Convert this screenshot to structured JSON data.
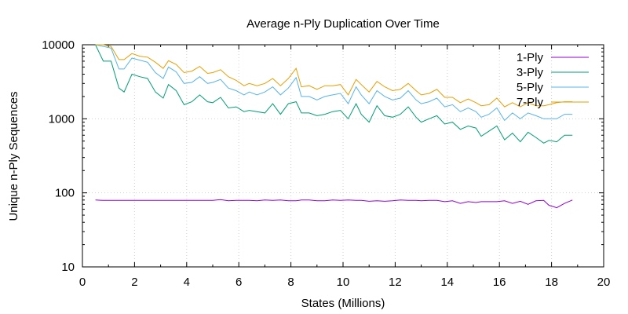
{
  "chart_data": {
    "type": "line",
    "title": "Average n-Ply Duplication Over Time",
    "xlabel": "States (Millions)",
    "ylabel": "Unique n-Ply Sequences",
    "xlim": [
      0,
      20
    ],
    "ylim": [
      10,
      10000
    ],
    "yscale": "log",
    "grid": true,
    "legend_position": "top-right",
    "x_ticks": [
      0,
      2,
      4,
      6,
      8,
      10,
      12,
      14,
      16,
      18,
      20
    ],
    "y_ticks": [
      10,
      100,
      1000,
      10000
    ],
    "x_tick_labels": [
      "0",
      "2",
      "4",
      "6",
      "8",
      "10",
      "12",
      "14",
      "16",
      "18",
      "20"
    ],
    "y_tick_labels": [
      "10",
      "100",
      "1000",
      "10000"
    ],
    "x": [
      0.5,
      0.8,
      1.1,
      1.4,
      1.6,
      1.9,
      2.2,
      2.5,
      2.8,
      3.1,
      3.3,
      3.6,
      3.9,
      4.2,
      4.5,
      4.8,
      5.0,
      5.3,
      5.6,
      5.9,
      6.2,
      6.4,
      6.7,
      7.0,
      7.3,
      7.6,
      7.9,
      8.2,
      8.4,
      8.7,
      9.0,
      9.3,
      9.6,
      9.9,
      10.2,
      10.5,
      10.7,
      11.0,
      11.3,
      11.6,
      11.9,
      12.2,
      12.5,
      12.8,
      13.0,
      13.3,
      13.6,
      13.9,
      14.2,
      14.5,
      14.8,
      15.1,
      15.3,
      15.6,
      15.9,
      16.2,
      16.5,
      16.8,
      17.1,
      17.4,
      17.7,
      17.9,
      18.2,
      18.5,
      18.8
    ],
    "series": [
      {
        "name": "1-Ply",
        "color": "#9400d3",
        "values": [
          80,
          79,
          79,
          79,
          79,
          79,
          79,
          79,
          79,
          79,
          79,
          79,
          79,
          79,
          79,
          79,
          79,
          81,
          78,
          79,
          79,
          79,
          78,
          80,
          79,
          80,
          78,
          78,
          80,
          80,
          78,
          78,
          80,
          79,
          80,
          79,
          79,
          77,
          78,
          77,
          78,
          80,
          79,
          79,
          78,
          79,
          79,
          76,
          78,
          72,
          76,
          74,
          76,
          76,
          76,
          78,
          72,
          77,
          70,
          78,
          79,
          68,
          63,
          72,
          80
        ]
      },
      {
        "name": "3-Ply",
        "color": "#009e73",
        "values": [
          10000,
          6000,
          6000,
          2600,
          2300,
          4000,
          3700,
          3500,
          2300,
          1900,
          2900,
          2400,
          1550,
          1700,
          2100,
          1700,
          1650,
          1950,
          1400,
          1450,
          1250,
          1300,
          1250,
          1200,
          1600,
          1150,
          1600,
          1700,
          1200,
          1200,
          1100,
          1150,
          1250,
          1300,
          1000,
          1600,
          1150,
          900,
          1500,
          1100,
          1050,
          1150,
          1450,
          1050,
          900,
          1000,
          1100,
          850,
          900,
          720,
          800,
          750,
          580,
          680,
          800,
          520,
          640,
          490,
          660,
          560,
          470,
          510,
          490,
          600,
          600
        ]
      },
      {
        "name": "5-Ply",
        "color": "#56b4e9",
        "values": [
          10000,
          9500,
          9000,
          4700,
          4700,
          6600,
          6200,
          5800,
          4200,
          3500,
          5000,
          4300,
          3000,
          3100,
          3700,
          3000,
          3100,
          3400,
          2600,
          2400,
          2100,
          2300,
          2100,
          2300,
          2700,
          2100,
          2600,
          3600,
          2000,
          2000,
          1800,
          2000,
          2100,
          2200,
          1600,
          2700,
          2100,
          1600,
          2400,
          2000,
          1800,
          1900,
          2400,
          1800,
          1600,
          1700,
          1900,
          1450,
          1550,
          1250,
          1400,
          1250,
          1050,
          1150,
          1400,
          950,
          1200,
          1000,
          1200,
          1100,
          1000,
          1000,
          1000,
          1150,
          1150
        ]
      },
      {
        "name": "7-Ply",
        "color": "#e69f00",
        "values": [
          10000,
          10000,
          9500,
          6300,
          6300,
          7600,
          7000,
          6800,
          5800,
          4800,
          6100,
          5400,
          4200,
          4400,
          5100,
          4100,
          4200,
          4600,
          3700,
          3300,
          2800,
          3000,
          2800,
          3000,
          3500,
          2800,
          3500,
          4800,
          2700,
          2800,
          2500,
          2800,
          2800,
          2900,
          2100,
          3400,
          2900,
          2300,
          3200,
          2700,
          2400,
          2500,
          3000,
          2400,
          2100,
          2200,
          2500,
          1950,
          1950,
          1650,
          1850,
          1650,
          1500,
          1550,
          1900,
          1450,
          1650,
          1450,
          1650,
          1500,
          1500,
          1550,
          1650,
          1700,
          1700
        ]
      }
    ]
  }
}
